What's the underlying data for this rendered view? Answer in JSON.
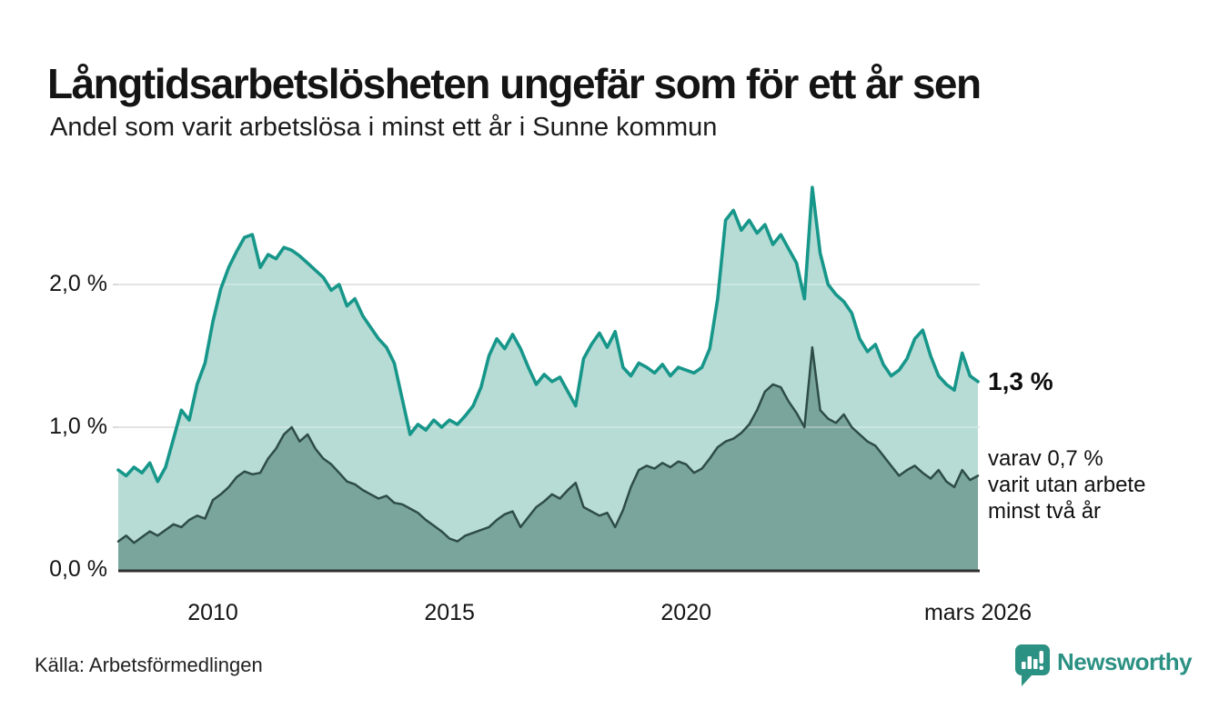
{
  "header": {
    "title": "Långtidsarbetslösheten ungefär som för ett år sen",
    "subtitle": "Andel som varit arbetslösa i minst ett år i Sunne kommun"
  },
  "chart": {
    "y_ticks": [
      {
        "label": "2,0 %",
        "value": 2.0
      },
      {
        "label": "1,0 %",
        "value": 1.0
      },
      {
        "label": "0,0 %",
        "value": 0.0
      }
    ],
    "x_ticks": [
      {
        "label": "2010",
        "month_index": 24
      },
      {
        "label": "2015",
        "month_index": 84
      },
      {
        "label": "2020",
        "month_index": 144
      },
      {
        "label": "mars 2026",
        "month_index": 218
      }
    ],
    "annotation": {
      "latest_value": "1,3 %",
      "note_lines": [
        "varav 0,7 %",
        "varit utan arbete",
        "minst två år"
      ]
    }
  },
  "footer": {
    "source": "Källa: Arbetsförmedlingen",
    "brand": "Newsworthy"
  },
  "colors": {
    "line_total": "#17968a",
    "fill_total": "#b6dcd5",
    "line_two_years": "#2e4c48",
    "fill_two_years": "#79a59d",
    "gridline": "#d9d9d9",
    "axis": "#2f2f2f",
    "brand_teal": "#2b9183",
    "text": "#141414"
  },
  "chart_data": {
    "type": "area",
    "unit": "%",
    "x_start": "2008-01",
    "x_end": "2026-03",
    "interval_months": 2,
    "total_months": 218,
    "ylim": [
      0,
      2.8
    ],
    "grid": "horizontal",
    "legend_position": "right-annotations",
    "series": [
      {
        "name": "Arbetslösa minst ett år",
        "latest_label": "1,3 %",
        "values": [
          0.7,
          0.66,
          0.72,
          0.68,
          0.75,
          0.62,
          0.72,
          0.92,
          1.12,
          1.05,
          1.3,
          1.45,
          1.74,
          1.97,
          2.12,
          2.23,
          2.33,
          2.35,
          2.12,
          2.21,
          2.18,
          2.26,
          2.24,
          2.2,
          2.15,
          2.1,
          2.05,
          1.96,
          2.0,
          1.85,
          1.9,
          1.78,
          1.7,
          1.62,
          1.56,
          1.45,
          1.2,
          0.95,
          1.02,
          0.98,
          1.05,
          1.0,
          1.05,
          1.02,
          1.08,
          1.15,
          1.28,
          1.5,
          1.62,
          1.55,
          1.65,
          1.55,
          1.42,
          1.3,
          1.37,
          1.32,
          1.35,
          1.25,
          1.15,
          1.48,
          1.58,
          1.66,
          1.56,
          1.67,
          1.42,
          1.36,
          1.45,
          1.42,
          1.38,
          1.44,
          1.36,
          1.42,
          1.4,
          1.38,
          1.42,
          1.55,
          1.9,
          2.45,
          2.52,
          2.38,
          2.45,
          2.36,
          2.42,
          2.28,
          2.35,
          2.25,
          2.15,
          1.9,
          2.68,
          2.22,
          2.0,
          1.93,
          1.88,
          1.8,
          1.62,
          1.53,
          1.58,
          1.44,
          1.36,
          1.4,
          1.48,
          1.62,
          1.68,
          1.5,
          1.36,
          1.3,
          1.26,
          1.52,
          1.36,
          1.32
        ]
      },
      {
        "name": "Arbetslösa minst två år",
        "latest_label": "0,7 %",
        "values": [
          0.2,
          0.24,
          0.19,
          0.23,
          0.27,
          0.24,
          0.28,
          0.32,
          0.3,
          0.35,
          0.38,
          0.36,
          0.49,
          0.53,
          0.58,
          0.65,
          0.69,
          0.67,
          0.68,
          0.78,
          0.85,
          0.95,
          1.0,
          0.9,
          0.95,
          0.85,
          0.78,
          0.74,
          0.68,
          0.62,
          0.6,
          0.56,
          0.53,
          0.5,
          0.52,
          0.47,
          0.46,
          0.43,
          0.4,
          0.35,
          0.31,
          0.27,
          0.22,
          0.2,
          0.24,
          0.26,
          0.28,
          0.3,
          0.35,
          0.39,
          0.41,
          0.3,
          0.37,
          0.44,
          0.48,
          0.53,
          0.5,
          0.56,
          0.61,
          0.44,
          0.41,
          0.38,
          0.4,
          0.3,
          0.42,
          0.58,
          0.7,
          0.73,
          0.71,
          0.75,
          0.72,
          0.76,
          0.74,
          0.68,
          0.71,
          0.78,
          0.86,
          0.9,
          0.92,
          0.96,
          1.02,
          1.12,
          1.25,
          1.3,
          1.28,
          1.18,
          1.1,
          1.0,
          1.56,
          1.12,
          1.06,
          1.03,
          1.09,
          1.0,
          0.95,
          0.9,
          0.87,
          0.8,
          0.73,
          0.66,
          0.7,
          0.73,
          0.68,
          0.64,
          0.7,
          0.62,
          0.58,
          0.7,
          0.63,
          0.66
        ]
      }
    ]
  }
}
